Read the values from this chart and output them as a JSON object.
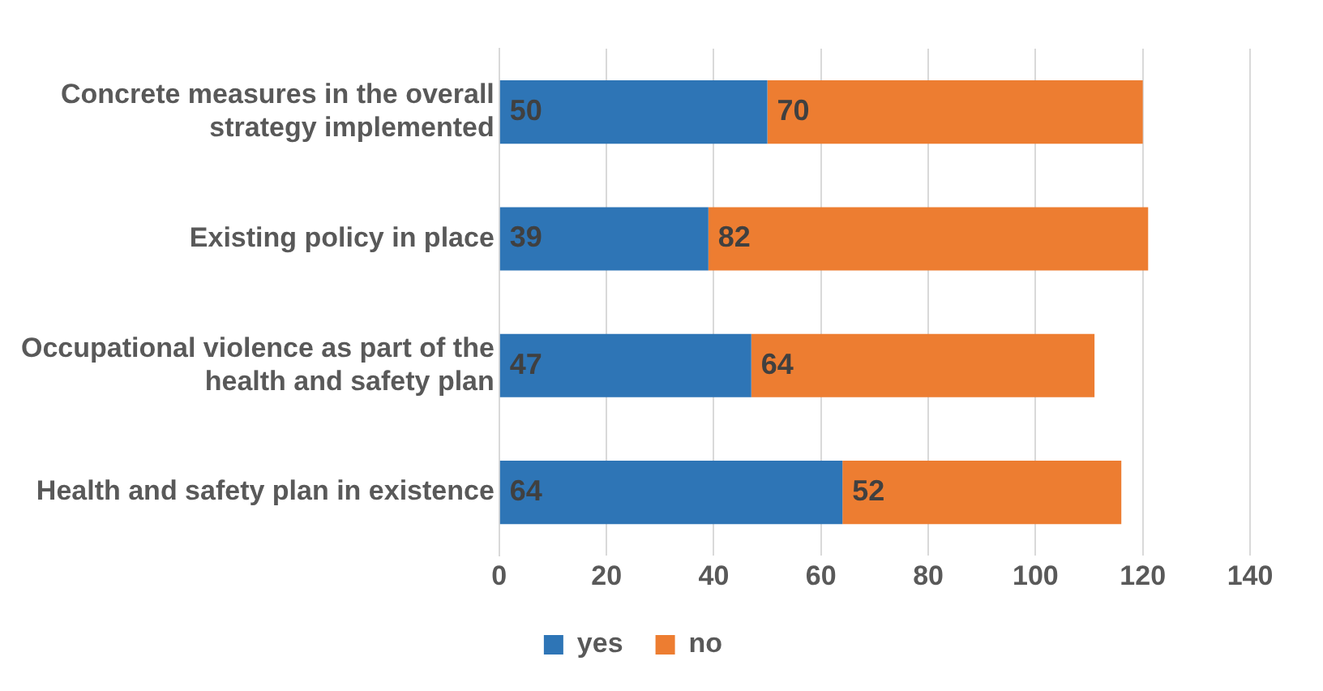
{
  "chart_data": {
    "type": "bar",
    "orientation": "horizontal",
    "stacked": true,
    "categories": [
      "Concrete measures in the overall strategy implemented",
      "Existing policy in place",
      "Occupational violence as part of the health and safety plan",
      "Health and safety plan in existence"
    ],
    "series": [
      {
        "name": "yes",
        "color": "#2e75b6",
        "values": [
          50,
          39,
          47,
          64
        ]
      },
      {
        "name": "no",
        "color": "#ed7d31",
        "values": [
          70,
          82,
          64,
          52
        ]
      }
    ],
    "xlim": [
      0,
      140
    ],
    "xticks": [
      0,
      20,
      40,
      60,
      80,
      100,
      120,
      140
    ],
    "grid": "x",
    "legend": "bottom",
    "data_labels": true
  }
}
